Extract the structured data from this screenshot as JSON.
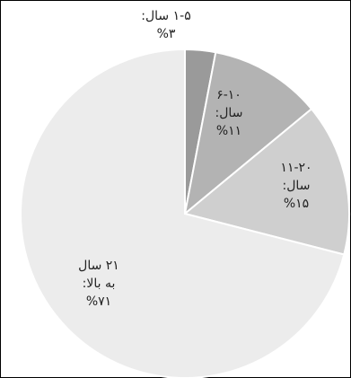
{
  "chart_data": {
    "type": "pie",
    "categories": [
      "۱-۵ سال",
      "۶-۱۰ سال",
      "۱۱-۲۰ سال",
      "۲۱ سال به بالا"
    ],
    "values": [
      3,
      11,
      15,
      71
    ],
    "labels": [
      [
        "۱-۵ سال:",
        "%۳"
      ],
      [
        "۶-۱۰",
        "سال:",
        "%۱۱"
      ],
      [
        "۱۱-۲۰",
        "سال:",
        "%۱۵"
      ],
      [
        "۲۱ سال",
        "به بالا:",
        "%۷۱"
      ]
    ],
    "colors": [
      "#9a9a9a",
      "#b3b3b3",
      "#cfcfcf",
      "#ececec"
    ],
    "edge_color": "#ffffff",
    "start_angle_deg": 0,
    "direction": "clockwise",
    "legend": "none"
  }
}
